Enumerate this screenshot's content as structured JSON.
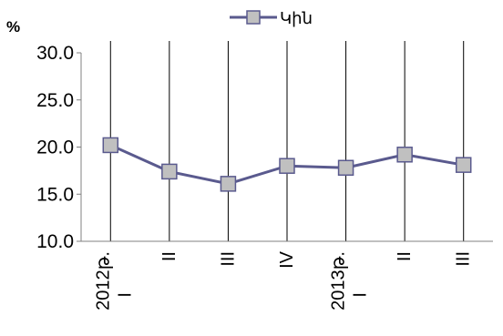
{
  "chart_data": {
    "type": "line",
    "ylabel": "%",
    "ylim": [
      10,
      30
    ],
    "yticks": [
      "10.0",
      "15.0",
      "20.0",
      "25.0",
      "30.0"
    ],
    "categories": [
      {
        "year": "2012թ.",
        "quarter": "I"
      },
      {
        "year": "",
        "quarter": "II"
      },
      {
        "year": "",
        "quarter": "III"
      },
      {
        "year": "",
        "quarter": "IV"
      },
      {
        "year": "2013թ.",
        "quarter": "I"
      },
      {
        "year": "",
        "quarter": "II"
      },
      {
        "year": "",
        "quarter": "III"
      }
    ],
    "series": [
      {
        "name": "Կին",
        "values": [
          20.2,
          17.4,
          16.1,
          18.0,
          17.8,
          19.2,
          18.1
        ]
      }
    ],
    "vertical_gridlines": true,
    "horizontal_gridlines": false,
    "legend_position": "top",
    "colors": {
      "line": "#5a5a8e",
      "marker_fill": "#c0c0c0",
      "marker_stroke": "#5a5a8e",
      "axis": "#808080",
      "gridline": "#000000"
    }
  }
}
